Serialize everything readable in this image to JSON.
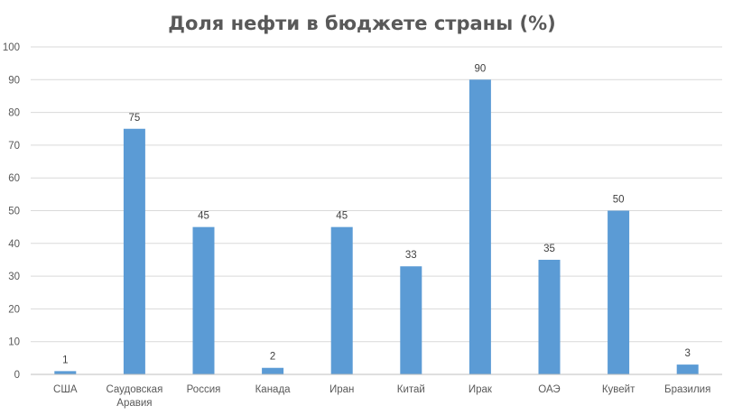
{
  "chart_data": {
    "type": "bar",
    "title": "Доля нефти в бюджете страны (%)",
    "categories": [
      "США",
      "Саудовская Аравия",
      "Россия",
      "Канада",
      "Иран",
      "Китай",
      "Ирак",
      "ОАЭ",
      "Кувейт",
      "Бразилия"
    ],
    "category_lines": [
      [
        "США"
      ],
      [
        "Саудовская",
        "Аравия"
      ],
      [
        "Россия"
      ],
      [
        "Канада"
      ],
      [
        "Иран"
      ],
      [
        "Китай"
      ],
      [
        "Ирак"
      ],
      [
        "ОАЭ"
      ],
      [
        "Кувейт"
      ],
      [
        "Бразилия"
      ]
    ],
    "values": [
      1,
      75,
      45,
      2,
      45,
      33,
      90,
      35,
      50,
      3
    ],
    "xlabel": "",
    "ylabel": "",
    "ylim": [
      0,
      100
    ],
    "yticks": [
      0,
      10,
      20,
      30,
      40,
      50,
      60,
      70,
      80,
      90,
      100
    ],
    "grid": true,
    "legend": "none",
    "bar_color": "#5b9bd5"
  }
}
